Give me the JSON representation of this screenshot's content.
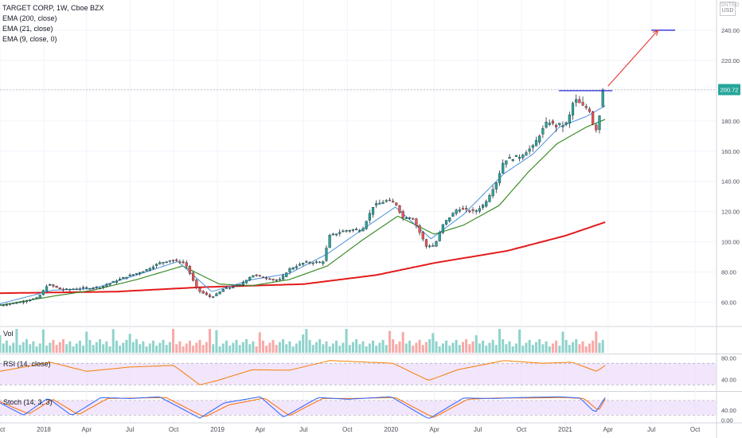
{
  "header": {
    "symbol": "TARGET CORP, 1W, Cboe BZX",
    "indicators": [
      "EMA (200, close)",
      "EMA (21, close)",
      "EMA (9, close, 0)"
    ],
    "currency_top": "SNTED",
    "currency": "USD"
  },
  "panes": {
    "volume_label": "Vol",
    "rsi_label": "RSI (14, close)",
    "stoch_label": "Stoch (14, 3, 3)"
  },
  "colors": {
    "up": "#26a69a",
    "down": "#ef5350",
    "ema200": "#e31b1b",
    "ema21": "#3d8c28",
    "ema9": "#4a90d9",
    "resistance": "#2b2bd6",
    "arrow": "#e53935",
    "rsi_line": "#f57c00",
    "rsi_band": "#ecdcfb",
    "stoch_k": "#2962ff",
    "stoch_d": "#ff6d00",
    "last_price_bg": "#26a69a"
  },
  "chart_data": {
    "type": "candlestick",
    "symbol": "TARGET CORP",
    "interval": "1W",
    "exchange": "Cboe BZX",
    "price_axis": {
      "ticks": [
        60,
        80,
        100,
        120,
        140,
        160,
        180,
        200,
        220,
        240
      ],
      "tick_labels": [
        "60.00",
        "80.00",
        "100.00",
        "120.00",
        "140.00",
        "160.00",
        "180.00",
        "",
        "220.00",
        "240.00"
      ],
      "ylim": [
        45,
        260
      ]
    },
    "last_price": {
      "value": 200.72,
      "label": "200.72"
    },
    "time_axis": {
      "labels": [
        "Oct",
        "2018",
        "Apr",
        "Jul",
        "Oct",
        "2019",
        "Apr",
        "Jul",
        "Oct",
        "2020",
        "Apr",
        "Jul",
        "Oct",
        "2021",
        "Apr",
        "Jul",
        "Oct"
      ],
      "dates": [
        "2017-10-01",
        "2018-01-01",
        "2018-04-01",
        "2018-07-01",
        "2018-10-01",
        "2019-01-01",
        "2019-04-01",
        "2019-07-01",
        "2019-10-01",
        "2020-01-01",
        "2020-04-01",
        "2020-07-01",
        "2020-10-01",
        "2021-01-01",
        "2021-04-01",
        "2021-07-01",
        "2021-10-01"
      ],
      "range": [
        "2017-10-01",
        "2021-11-15"
      ]
    },
    "price_keypoints": [
      [
        "2017-10-01",
        58
      ],
      [
        "2017-11-10",
        60
      ],
      [
        "2017-12-20",
        63
      ],
      [
        "2018-01-10",
        72
      ],
      [
        "2018-02-10",
        68
      ],
      [
        "2018-03-20",
        69
      ],
      [
        "2018-05-01",
        70
      ],
      [
        "2018-06-15",
        76
      ],
      [
        "2018-08-01",
        81
      ],
      [
        "2018-09-01",
        86
      ],
      [
        "2018-09-25",
        88
      ],
      [
        "2018-10-25",
        86
      ],
      [
        "2018-11-20",
        68
      ],
      [
        "2018-12-20",
        63
      ],
      [
        "2019-01-15",
        69
      ],
      [
        "2019-02-15",
        71
      ],
      [
        "2019-03-15",
        78
      ],
      [
        "2019-04-15",
        76
      ],
      [
        "2019-05-10",
        74
      ],
      [
        "2019-06-01",
        82
      ],
      [
        "2019-07-01",
        86
      ],
      [
        "2019-08-10",
        86
      ],
      [
        "2019-08-25",
        104
      ],
      [
        "2019-09-20",
        107
      ],
      [
        "2019-11-01",
        108
      ],
      [
        "2019-11-25",
        124
      ],
      [
        "2019-12-20",
        127
      ],
      [
        "2020-01-10",
        126
      ],
      [
        "2020-01-25",
        116
      ],
      [
        "2020-02-15",
        116
      ],
      [
        "2020-03-15",
        97
      ],
      [
        "2020-04-01",
        97
      ],
      [
        "2020-04-20",
        112
      ],
      [
        "2020-05-20",
        122
      ],
      [
        "2020-06-25",
        120
      ],
      [
        "2020-07-15",
        125
      ],
      [
        "2020-08-10",
        140
      ],
      [
        "2020-08-25",
        154
      ],
      [
        "2020-09-25",
        156
      ],
      [
        "2020-10-25",
        163
      ],
      [
        "2020-11-25",
        180
      ],
      [
        "2020-12-15",
        176
      ],
      [
        "2021-01-05",
        178
      ],
      [
        "2021-01-20",
        195
      ],
      [
        "2021-02-05",
        190
      ],
      [
        "2021-02-20",
        188
      ],
      [
        "2021-03-05",
        172
      ],
      [
        "2021-03-15",
        185
      ],
      [
        "2021-03-26",
        200.72
      ]
    ],
    "ema200_keypoints": [
      [
        "2017-10-01",
        66
      ],
      [
        "2018-06-01",
        67
      ],
      [
        "2018-12-01",
        70
      ],
      [
        "2019-07-01",
        72
      ],
      [
        "2019-12-01",
        78
      ],
      [
        "2020-04-01",
        86
      ],
      [
        "2020-09-01",
        94
      ],
      [
        "2021-01-01",
        104
      ],
      [
        "2021-03-26",
        113
      ]
    ],
    "ema21_keypoints": [
      [
        "2017-10-01",
        58
      ],
      [
        "2018-01-20",
        64
      ],
      [
        "2018-04-15",
        68
      ],
      [
        "2018-07-15",
        75
      ],
      [
        "2018-10-20",
        84
      ],
      [
        "2019-01-05",
        72
      ],
      [
        "2019-03-15",
        71
      ],
      [
        "2019-06-01",
        75
      ],
      [
        "2019-08-20",
        84
      ],
      [
        "2019-11-01",
        101
      ],
      [
        "2020-01-15",
        117
      ],
      [
        "2020-04-01",
        105
      ],
      [
        "2020-06-01",
        111
      ],
      [
        "2020-08-15",
        124
      ],
      [
        "2020-10-15",
        146
      ],
      [
        "2020-12-15",
        165
      ],
      [
        "2021-02-15",
        176
      ],
      [
        "2021-03-26",
        181
      ]
    ],
    "ema9_keypoints": [
      [
        "2017-10-01",
        59
      ],
      [
        "2018-01-20",
        68
      ],
      [
        "2018-04-15",
        69
      ],
      [
        "2018-07-15",
        78
      ],
      [
        "2018-10-10",
        87
      ],
      [
        "2018-12-20",
        67
      ],
      [
        "2019-03-15",
        75
      ],
      [
        "2019-06-01",
        79
      ],
      [
        "2019-08-20",
        92
      ],
      [
        "2019-11-01",
        108
      ],
      [
        "2020-01-10",
        123
      ],
      [
        "2020-03-25",
        102
      ],
      [
        "2020-06-01",
        118
      ],
      [
        "2020-08-25",
        145
      ],
      [
        "2020-10-25",
        158
      ],
      [
        "2020-12-20",
        176
      ],
      [
        "2021-02-15",
        183
      ],
      [
        "2021-03-26",
        190
      ]
    ],
    "resistance_line": {
      "value": 200,
      "from": "2021-01-01",
      "to": "2021-04-10"
    },
    "target_line": {
      "value": 240,
      "from": "2021-07-01",
      "to": "2021-08-20"
    },
    "projection_arrow": {
      "from": [
        "2021-04-01",
        203
      ],
      "to": [
        "2021-07-15",
        240
      ]
    },
    "rsi": {
      "ticks": [
        40,
        80
      ],
      "tick_labels": [
        "40.00",
        "80.00"
      ],
      "overbought": 70,
      "oversold": 30,
      "ylim": [
        20,
        85
      ],
      "keypoints": [
        [
          "2017-10-01",
          55
        ],
        [
          "2018-01-15",
          72
        ],
        [
          "2018-04-01",
          55
        ],
        [
          "2018-07-01",
          63
        ],
        [
          "2018-10-01",
          66
        ],
        [
          "2018-11-25",
          30
        ],
        [
          "2019-01-01",
          38
        ],
        [
          "2019-03-15",
          58
        ],
        [
          "2019-06-01",
          57
        ],
        [
          "2019-08-25",
          75
        ],
        [
          "2019-11-15",
          72
        ],
        [
          "2020-01-05",
          70
        ],
        [
          "2020-03-20",
          38
        ],
        [
          "2020-05-20",
          58
        ],
        [
          "2020-08-25",
          75
        ],
        [
          "2020-11-15",
          70
        ],
        [
          "2021-01-15",
          72
        ],
        [
          "2021-03-08",
          55
        ],
        [
          "2021-03-26",
          66
        ]
      ]
    },
    "stoch": {
      "ticks": [
        0,
        40
      ],
      "tick_labels": [
        "0.00",
        "40.00"
      ],
      "upper": 80,
      "lower": 20,
      "ylim": [
        -8,
        112
      ],
      "k_keypoints": [
        [
          "2017-10-01",
          70
        ],
        [
          "2017-11-20",
          20
        ],
        [
          "2018-01-10",
          90
        ],
        [
          "2018-03-01",
          18
        ],
        [
          "2018-05-01",
          92
        ],
        [
          "2018-07-01",
          88
        ],
        [
          "2018-09-01",
          95
        ],
        [
          "2018-11-25",
          8
        ],
        [
          "2019-01-15",
          70
        ],
        [
          "2019-04-01",
          95
        ],
        [
          "2019-05-20",
          12
        ],
        [
          "2019-08-01",
          92
        ],
        [
          "2019-10-01",
          85
        ],
        [
          "2020-01-01",
          95
        ],
        [
          "2020-03-20",
          5
        ],
        [
          "2020-06-01",
          90
        ],
        [
          "2020-08-01",
          88
        ],
        [
          "2020-10-01",
          92
        ],
        [
          "2020-12-20",
          95
        ],
        [
          "2021-02-01",
          90
        ],
        [
          "2021-03-05",
          30
        ],
        [
          "2021-03-26",
          92
        ]
      ],
      "d_keypoints": [
        [
          "2017-10-01",
          75
        ],
        [
          "2017-12-01",
          25
        ],
        [
          "2018-01-20",
          85
        ],
        [
          "2018-03-15",
          22
        ],
        [
          "2018-05-15",
          88
        ],
        [
          "2018-07-15",
          90
        ],
        [
          "2018-09-15",
          92
        ],
        [
          "2018-12-05",
          12
        ],
        [
          "2019-01-25",
          62
        ],
        [
          "2019-04-10",
          90
        ],
        [
          "2019-06-01",
          18
        ],
        [
          "2019-08-10",
          88
        ],
        [
          "2019-10-15",
          88
        ],
        [
          "2020-01-10",
          92
        ],
        [
          "2020-03-30",
          10
        ],
        [
          "2020-06-10",
          85
        ],
        [
          "2020-08-10",
          90
        ],
        [
          "2020-10-15",
          90
        ],
        [
          "2020-12-30",
          92
        ],
        [
          "2021-02-10",
          88
        ],
        [
          "2021-03-12",
          38
        ],
        [
          "2021-03-26",
          85
        ]
      ]
    }
  }
}
